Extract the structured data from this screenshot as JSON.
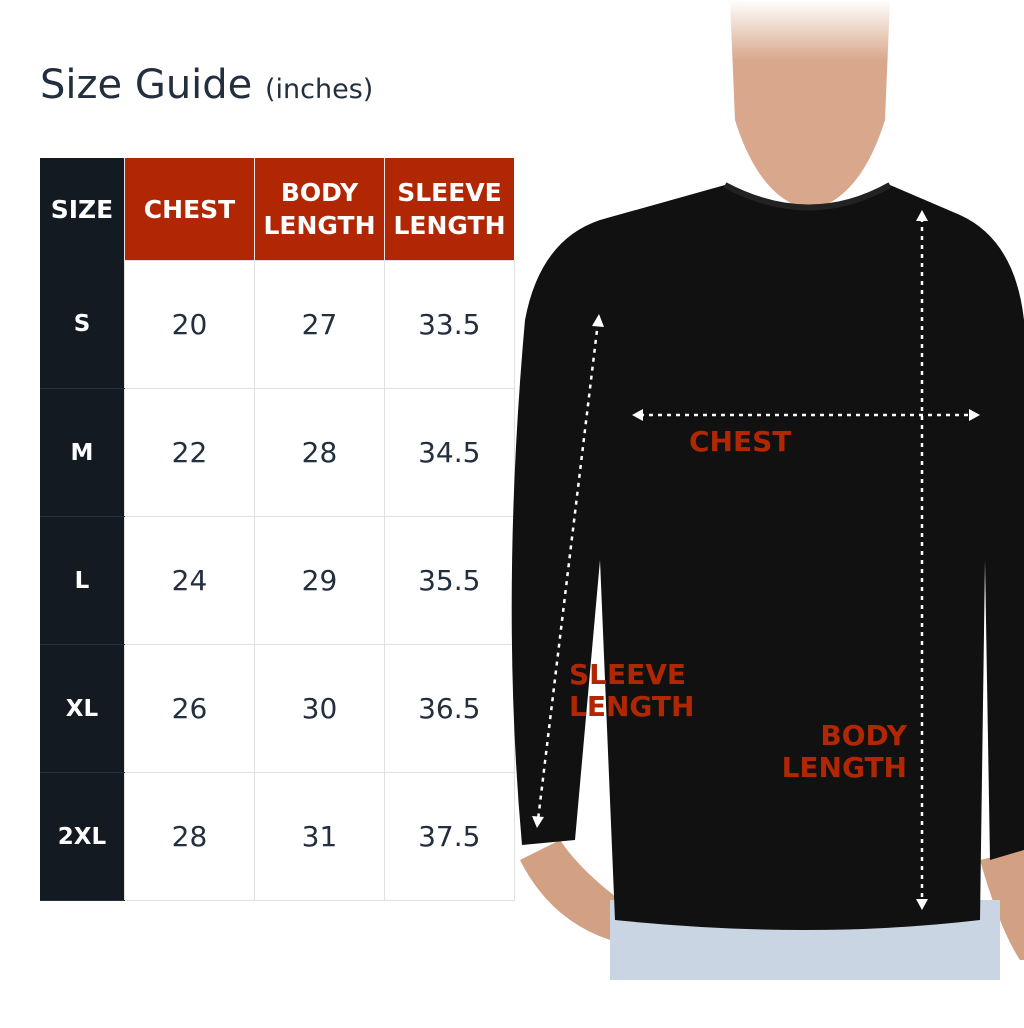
{
  "title": {
    "main": "Size Guide",
    "unit": "(inches)"
  },
  "table": {
    "headers": [
      "SIZE",
      "CHEST",
      "BODY LENGTH",
      "SLEEVE LENGTH"
    ],
    "rows": [
      {
        "size": "S",
        "chest": "20",
        "body_length": "27",
        "sleeve_length": "33.5"
      },
      {
        "size": "M",
        "chest": "22",
        "body_length": "28",
        "sleeve_length": "34.5"
      },
      {
        "size": "L",
        "chest": "24",
        "body_length": "29",
        "sleeve_length": "35.5"
      },
      {
        "size": "XL",
        "chest": "26",
        "body_length": "30",
        "sleeve_length": "36.5"
      },
      {
        "size": "2XL",
        "chest": "28",
        "body_length": "31",
        "sleeve_length": "37.5"
      }
    ]
  },
  "diagram": {
    "chest": "CHEST",
    "sleeve_line1": "SLEEVE",
    "sleeve_line2": "LENGTH",
    "body_line1": "BODY",
    "body_line2": "LENGTH"
  },
  "colors": {
    "accent": "#b12704",
    "dark": "#131a22",
    "title": "#232f3e"
  }
}
